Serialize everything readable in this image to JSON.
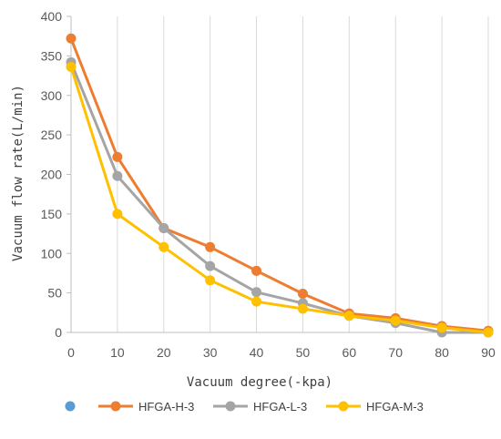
{
  "chart_data": {
    "type": "line",
    "title": "",
    "xlabel": "Vacuum degree(-kpa)",
    "ylabel": "Vacuum flow rate(L/min)",
    "x": [
      0,
      10,
      20,
      30,
      40,
      50,
      60,
      70,
      80,
      90
    ],
    "x_ticks": [
      "0",
      "10",
      "20",
      "30",
      "40",
      "50",
      "60",
      "70",
      "80",
      "90"
    ],
    "y_ticks": [
      "0",
      "50",
      "100",
      "150",
      "200",
      "250",
      "300",
      "350",
      "400"
    ],
    "xlim": [
      0,
      90
    ],
    "ylim": [
      0,
      400
    ],
    "grid": "vertical",
    "legend_position": "bottom",
    "legend_extra_marker_color": "#5B9BD5",
    "series": [
      {
        "name": "HFGA-H-3",
        "color": "#ED7D31",
        "values": [
          372,
          222,
          132,
          108,
          78,
          49,
          24,
          18,
          8,
          2
        ]
      },
      {
        "name": "HFGA-L-3",
        "color": "#A5A5A5",
        "values": [
          342,
          198,
          132,
          84,
          51,
          37,
          21,
          12,
          0,
          0
        ]
      },
      {
        "name": "HFGA-M-3",
        "color": "#FFC000",
        "values": [
          336,
          150,
          108,
          66,
          39,
          30,
          21,
          15,
          6,
          0
        ]
      }
    ]
  }
}
